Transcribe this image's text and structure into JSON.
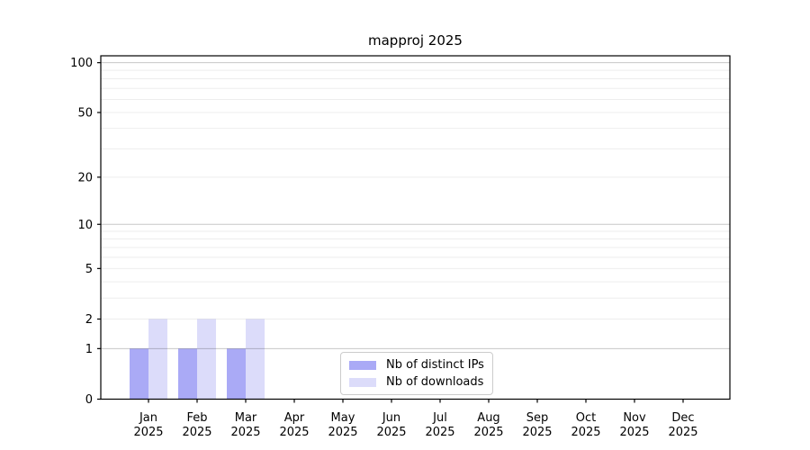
{
  "chart_data": {
    "type": "bar",
    "title": "mapproj 2025",
    "categories": [
      {
        "month": "Jan",
        "year": "2025"
      },
      {
        "month": "Feb",
        "year": "2025"
      },
      {
        "month": "Mar",
        "year": "2025"
      },
      {
        "month": "Apr",
        "year": "2025"
      },
      {
        "month": "May",
        "year": "2025"
      },
      {
        "month": "Jun",
        "year": "2025"
      },
      {
        "month": "Jul",
        "year": "2025"
      },
      {
        "month": "Aug",
        "year": "2025"
      },
      {
        "month": "Sep",
        "year": "2025"
      },
      {
        "month": "Oct",
        "year": "2025"
      },
      {
        "month": "Nov",
        "year": "2025"
      },
      {
        "month": "Dec",
        "year": "2025"
      }
    ],
    "series": [
      {
        "name": "Nb of distinct IPs",
        "color": "#aaaaf6",
        "values": [
          1,
          1,
          1,
          0,
          0,
          0,
          0,
          0,
          0,
          0,
          0,
          0
        ]
      },
      {
        "name": "Nb of downloads",
        "color": "#dcdcfa",
        "values": [
          2,
          2,
          2,
          0,
          0,
          0,
          0,
          0,
          0,
          0,
          0,
          0
        ]
      }
    ],
    "y_axis": {
      "scale": "log1p",
      "max": 110,
      "tick_labels": [
        "0",
        "1",
        "2",
        "5",
        "10",
        "20",
        "50",
        "100"
      ],
      "tick_values": [
        0,
        1,
        2,
        5,
        10,
        20,
        50,
        100
      ],
      "major_gridlines": [
        1,
        10,
        100
      ],
      "minor_gridlines": [
        2,
        3,
        4,
        5,
        6,
        7,
        8,
        9,
        20,
        30,
        40,
        50,
        60,
        70,
        80,
        90
      ]
    },
    "x_axis": {
      "label_line1_key": "month",
      "label_line2_key": "year"
    },
    "legend": {
      "position": "lower center"
    },
    "style": {
      "background": "#ffffff",
      "axis_color": "#000000",
      "major_grid_color": "rgba(0,0,0,0.22)",
      "minor_grid_color": "rgba(0,0,0,0.07)",
      "legend_border_color": "#cccccc",
      "text_color": "#000000"
    }
  }
}
